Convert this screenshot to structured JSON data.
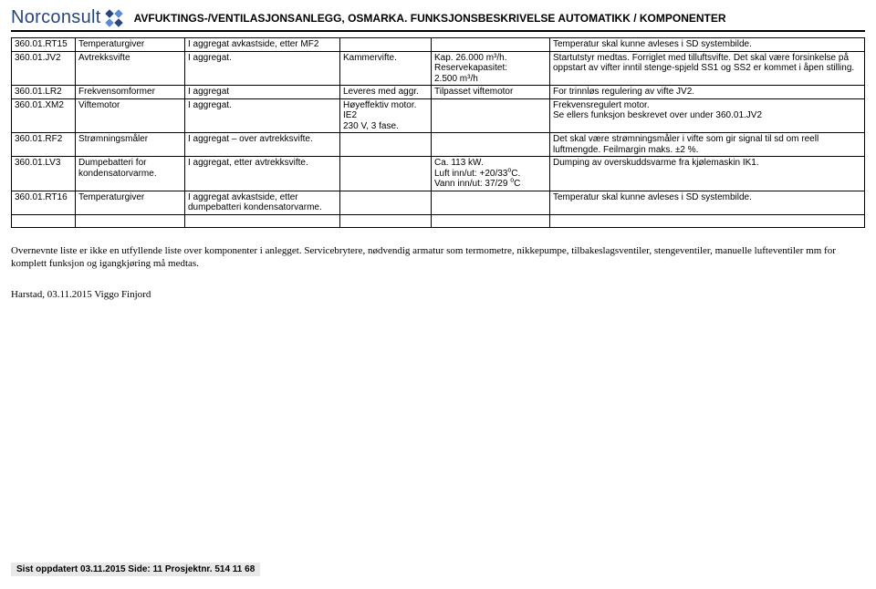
{
  "header": {
    "logo_text": "Norconsult",
    "doc_title": "AVFUKTINGS-/VENTILASJONSANLEGG, OSMARKA. FUNKSJONSBESKRIVELSE AUTOMATIKK / KOMPONENTER"
  },
  "logo": {
    "color_primary": "#29467a",
    "color_accent": "#5c8bd6"
  },
  "table": {
    "rows": [
      {
        "id": "360.01.RT15",
        "name": "Temperaturgiver",
        "loc": "I aggregat avkastside, etter MF2",
        "note": "",
        "spec": "",
        "desc": "Temperatur skal kunne avleses i SD systembilde."
      },
      {
        "id": "360.01.JV2",
        "name": "Avtrekksvifte",
        "loc": "I aggregat.",
        "note": "Kammervifte.",
        "spec": "Kap. 26.000 m³/h.\nReservekapasitet:\n2.500 m³/h",
        "desc": "Startutstyr medtas. Forriglet med tilluftsvifte. Det skal være forsinkelse på oppstart av vifter inntil stenge-spjeld SS1 og SS2 er kommet i åpen stilling."
      },
      {
        "id": "360.01.LR2",
        "name": "Frekvensomformer",
        "loc": "I aggregat",
        "note": "Leveres med aggr.",
        "spec": "Tilpasset viftemotor",
        "desc": "For trinnløs regulering av vifte JV2."
      },
      {
        "id": "360.01.XM2",
        "name": "Viftemotor",
        "loc": "I aggregat.",
        "note": "Høyeffektiv motor. IE2\n230 V, 3 fase.",
        "spec": "",
        "desc": "Frekvensregulert motor.\nSe ellers funksjon beskrevet over under 360.01.JV2"
      },
      {
        "id": "360.01.RF2",
        "name": "Strømningsmåler",
        "loc": "I aggregat – over avtrekksvifte.",
        "note": "",
        "spec": "",
        "desc": "Det skal være strømningsmåler i vifte som gir signal til sd om reell luftmengde. Feilmargin maks. ±2 %."
      },
      {
        "id": "360.01.LV3",
        "name": "Dumpebatteri for kondensatorvarme.",
        "loc": "I aggregat, etter avtrekksvifte.",
        "note": "",
        "spec": "Ca. 113 kW.\nLuft inn/ut: +20/33ºC.\nVann inn/ut: 37/29 ºC",
        "desc": "Dumping av overskuddsvarme fra kjølemaskin IK1."
      },
      {
        "id": "360.01.RT16",
        "name": "Temperaturgiver",
        "loc": "I aggregat avkastside, etter dumpebatteri kondensatorvarme.",
        "note": "",
        "spec": "",
        "desc": "Temperatur skal kunne avleses i SD systembilde."
      },
      {
        "id": "",
        "name": "",
        "loc": "",
        "note": "",
        "spec": "",
        "desc": ""
      }
    ]
  },
  "body_text": "Overnevnte liste er ikke en utfyllende liste over komponenter i anlegget. Servicebrytere, nødvendig armatur som termometre, nikkepumpe, tilbakeslagsventiler, stengeventiler, manuelle lufteventiler mm for komplett funksjon og igangkjøring må medtas.",
  "sign": "Harstad, 03.11.2015  Viggo Finjord",
  "footer": "Sist oppdatert 03.11.2015  Side: 11 Prosjektnr. 514 11 68"
}
